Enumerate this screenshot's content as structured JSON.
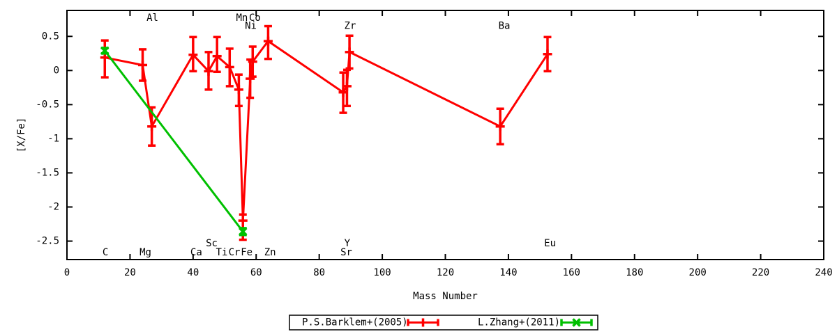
{
  "chart_data": {
    "type": "line",
    "title": "",
    "xlabel": "Mass Number",
    "ylabel": "[X/Fe]",
    "xlim": [
      0,
      240
    ],
    "ylim": [
      -2.77,
      0.88
    ],
    "grid": false,
    "legend_position": "bottom-center-outside",
    "xticks": [
      0,
      20,
      40,
      60,
      80,
      100,
      120,
      140,
      160,
      180,
      200,
      220,
      240
    ],
    "yticks": [
      {
        "value": 0.5,
        "label": "0.5"
      },
      {
        "value": 0,
        "label": "0"
      },
      {
        "value": -0.5,
        "label": "-0.5"
      },
      {
        "value": -1,
        "label": "-1"
      },
      {
        "value": -1.5,
        "label": "-1.5"
      },
      {
        "value": -2,
        "label": "-2"
      },
      {
        "value": -2.5,
        "label": "-2.5"
      }
    ],
    "series": [
      {
        "name": "P.S.Barklem+(2005)",
        "color": "#ff0000",
        "marker": "plus",
        "points": [
          {
            "element": "C",
            "mass": 12.0,
            "value": 0.19,
            "err_low": -0.1,
            "err_high": 0.44
          },
          {
            "element": "Mg",
            "mass": 24.0,
            "value": 0.08,
            "err_low": -0.15,
            "err_high": 0.31
          },
          {
            "element": "Al",
            "mass": 26.9,
            "value": -0.82,
            "err_low": -1.1,
            "err_high": -0.54
          },
          {
            "element": "Ca",
            "mass": 40.0,
            "value": 0.23,
            "err_low": -0.01,
            "err_high": 0.49
          },
          {
            "element": "Sc",
            "mass": 44.9,
            "value": -0.01,
            "err_low": -0.28,
            "err_high": 0.27
          },
          {
            "element": "Ti",
            "mass": 47.6,
            "value": 0.21,
            "err_low": -0.02,
            "err_high": 0.49
          },
          {
            "element": "Cr",
            "mass": 51.6,
            "value": 0.05,
            "err_low": -0.23,
            "err_high": 0.32
          },
          {
            "element": "Mn",
            "mass": 54.5,
            "value": -0.28,
            "err_low": -0.52,
            "err_high": -0.06
          },
          {
            "element": "Fe",
            "mass": 55.8,
            "value": -2.2,
            "err_low": -2.48,
            "err_high": -2.11
          },
          {
            "element": "Ni",
            "mass": 58.1,
            "value": -0.12,
            "err_low": -0.4,
            "err_high": 0.16
          },
          {
            "element": "Co",
            "mass": 58.9,
            "value": 0.13,
            "err_low": -0.09,
            "err_high": 0.35
          },
          {
            "element": "Zn",
            "mass": 63.8,
            "value": 0.43,
            "err_low": 0.17,
            "err_high": 0.65
          },
          {
            "element": "Sr",
            "mass": 87.6,
            "value": -0.32,
            "err_low": -0.62,
            "err_high": -0.03
          },
          {
            "element": "Y",
            "mass": 88.8,
            "value": -0.23,
            "err_low": -0.52,
            "err_high": 0.01
          },
          {
            "element": "Zr",
            "mass": 89.6,
            "value": 0.27,
            "err_low": 0.03,
            "err_high": 0.51
          },
          {
            "element": "Ba",
            "mass": 137.4,
            "value": -0.82,
            "err_low": -1.08,
            "err_high": -0.56
          },
          {
            "element": "Eu",
            "mass": 152.4,
            "value": 0.24,
            "err_low": -0.01,
            "err_high": 0.49
          }
        ]
      },
      {
        "name": "L.Zhang+(2011)",
        "color": "#00c000",
        "marker": "cross",
        "points": [
          {
            "element": "C",
            "mass": 12.0,
            "value": 0.29,
            "err_low": 0.25,
            "err_high": 0.33
          },
          {
            "element": "Fe",
            "mass": 55.8,
            "value": -2.36,
            "err_low": -2.41,
            "err_high": -2.31
          }
        ]
      }
    ],
    "element_labels": [
      {
        "text": "Al",
        "mass": 27.1,
        "row": "top"
      },
      {
        "text": "Mn",
        "mass": 55.5,
        "row": "top"
      },
      {
        "text": "Co",
        "mass": 59.6,
        "row": "top"
      },
      {
        "text": "Ni",
        "mass": 58.3,
        "row": "top2"
      },
      {
        "text": "Zr",
        "mass": 89.8,
        "row": "top2"
      },
      {
        "text": "Ba",
        "mass": 138.7,
        "row": "top2"
      },
      {
        "text": "C",
        "mass": 12.2,
        "row": "bottom"
      },
      {
        "text": "Mg",
        "mass": 24.9,
        "row": "bottom"
      },
      {
        "text": "Ca",
        "mass": 41.0,
        "row": "bottom"
      },
      {
        "text": "Sc",
        "mass": 45.9,
        "row": "bottom2"
      },
      {
        "text": "Ti",
        "mass": 49.1,
        "row": "bottom"
      },
      {
        "text": "Cr",
        "mass": 53.1,
        "row": "bottom"
      },
      {
        "text": "Fe",
        "mass": 57.0,
        "row": "bottom"
      },
      {
        "text": "Zn",
        "mass": 64.4,
        "row": "bottom"
      },
      {
        "text": "Sr",
        "mass": 88.6,
        "row": "bottom"
      },
      {
        "text": "Y",
        "mass": 88.9,
        "row": "bottom2"
      },
      {
        "text": "Eu",
        "mass": 153.2,
        "row": "bottom2"
      }
    ],
    "legend": {
      "items": [
        {
          "label": "P.S.Barklem+(2005)",
          "color": "#ff0000",
          "marker": "plus"
        },
        {
          "label": "L.Zhang+(2011)",
          "color": "#00c000",
          "marker": "cross"
        }
      ]
    }
  }
}
